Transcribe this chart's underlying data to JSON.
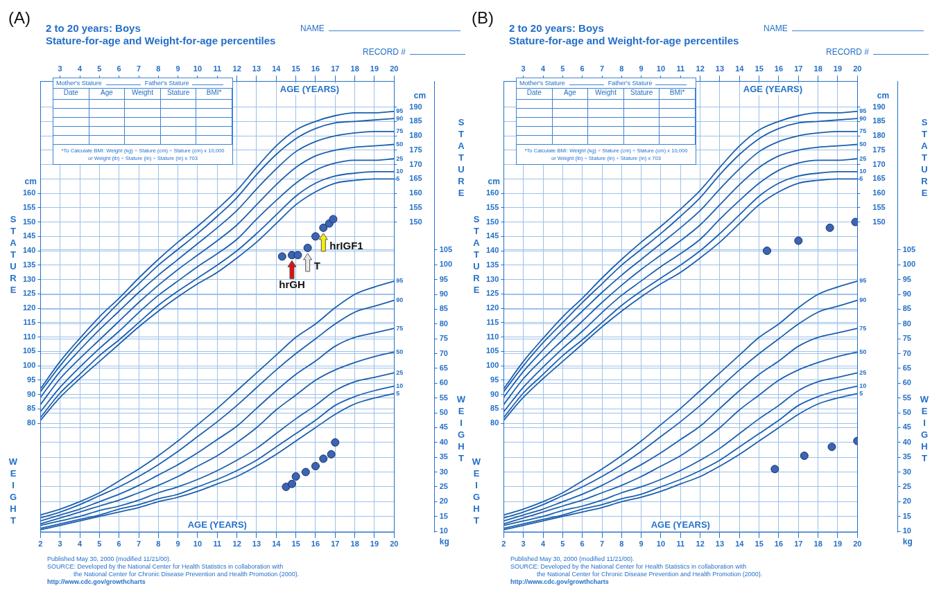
{
  "chart_data": [
    {
      "type": "line",
      "title": "2 to 20 years: Boys",
      "subtitle": "Stature-for-age and Weight-for-age percentiles",
      "xlabel": "AGE (YEARS)",
      "x2label": "AGE (YEARS)",
      "ylabel": "cm",
      "y2label": "kg",
      "y3label": "cm",
      "x": [
        2,
        3,
        4,
        5,
        6,
        7,
        8,
        9,
        10,
        11,
        12,
        13,
        14,
        15,
        16,
        17,
        18,
        19,
        20
      ],
      "xlim": [
        2,
        20
      ],
      "xticks": [
        2,
        3,
        4,
        5,
        6,
        7,
        8,
        9,
        10,
        11,
        12,
        13,
        14,
        15,
        16,
        17,
        18,
        19,
        20
      ],
      "x2lim": [
        2,
        20
      ],
      "x2ticks": [
        3,
        4,
        5,
        6,
        7,
        8,
        9,
        10,
        11,
        12,
        13,
        14,
        15,
        16,
        17,
        18,
        19,
        20
      ],
      "ylim": [
        42,
        199
      ],
      "yticks": [
        80,
        85,
        90,
        95,
        100,
        105,
        110,
        115,
        120,
        125,
        130,
        135,
        140,
        145,
        150,
        155,
        160
      ],
      "y2lim": [
        9.6,
        162
      ],
      "y2ticks": [
        10,
        15,
        20,
        25,
        30,
        35,
        40,
        45,
        50,
        55,
        60,
        65,
        70,
        75,
        80,
        85,
        90,
        95,
        100,
        105
      ],
      "y3lim": [
        42,
        199
      ],
      "y3ticks": [
        150,
        155,
        160,
        165,
        170,
        175,
        180,
        185,
        190
      ],
      "grid": true,
      "series": [
        {
          "name": "95",
          "color": "#1b5fae",
          "axis": "y",
          "values": [
            92,
            101.5,
            109.5,
            117,
            123.5,
            130.5,
            137,
            143,
            148.5,
            154.5,
            161,
            169,
            176.5,
            182,
            185,
            187,
            188,
            188,
            188.5
          ]
        },
        {
          "name": "90",
          "color": "#1b5fae",
          "axis": "y",
          "values": [
            91,
            100,
            108,
            115,
            122,
            128.5,
            135,
            140.5,
            146,
            152,
            158.5,
            166.5,
            173.5,
            179,
            182.5,
            184.5,
            185,
            185.5,
            186
          ]
        },
        {
          "name": "75",
          "color": "#1b5fae",
          "axis": "y",
          "values": [
            89,
            98,
            105.5,
            112.5,
            119,
            125.5,
            131.5,
            137,
            142.5,
            148,
            154,
            161.5,
            168.5,
            174.5,
            178,
            180,
            181,
            181.5,
            181.5
          ]
        },
        {
          "name": "50",
          "color": "#1b5fae",
          "axis": "y",
          "values": [
            86.5,
            95.5,
            102.5,
            109,
            115.5,
            122,
            128,
            133.5,
            138.5,
            143.5,
            149,
            156,
            163,
            169,
            173,
            175,
            176,
            176.5,
            177
          ]
        },
        {
          "name": "25",
          "color": "#1b5fae",
          "axis": "y",
          "values": [
            84,
            92.5,
            99.5,
            106,
            112,
            118.5,
            124.5,
            129.5,
            134.5,
            139,
            144,
            151,
            157.5,
            163.5,
            168,
            170.5,
            171.5,
            171.5,
            172
          ]
        },
        {
          "name": "10",
          "color": "#1b5fae",
          "axis": "y",
          "values": [
            82,
            90.5,
            97,
            103.5,
            109,
            115,
            121,
            126,
            130.5,
            135,
            140,
            146,
            152.5,
            159,
            163.5,
            166,
            167,
            167.5,
            167.5
          ]
        },
        {
          "name": "5",
          "color": "#1b5fae",
          "axis": "y",
          "values": [
            81,
            89,
            95.5,
            101.5,
            107.5,
            113.5,
            119,
            124,
            128.5,
            132.5,
            137.5,
            143,
            149.5,
            156,
            160.5,
            163.5,
            164.5,
            165,
            165
          ]
        },
        {
          "name": "95",
          "color": "#1b5fae",
          "axis": "y2",
          "values": [
            15.5,
            17.5,
            20,
            23,
            27,
            31,
            35.5,
            40.5,
            46,
            51.5,
            57.5,
            63.5,
            69.5,
            75.5,
            80,
            85.5,
            90,
            92.5,
            94.5
          ]
        },
        {
          "name": "90",
          "color": "#1b5fae",
          "axis": "y2",
          "values": [
            14.5,
            16.5,
            19,
            22,
            25,
            28.5,
            32.5,
            37,
            42,
            47,
            52.5,
            58.5,
            64.5,
            70,
            75,
            80,
            84,
            86,
            88
          ]
        },
        {
          "name": "75",
          "color": "#1b5fae",
          "axis": "y2",
          "values": [
            13.5,
            15.5,
            17.5,
            20,
            22.5,
            25.5,
            29,
            32.5,
            36.5,
            41,
            45.5,
            51.5,
            57.5,
            63,
            67.5,
            72.5,
            75.5,
            77,
            78.5
          ]
        },
        {
          "name": "50",
          "color": "#1b5fae",
          "axis": "y2",
          "values": [
            12.5,
            14.5,
            16.5,
            18.5,
            20.5,
            23,
            25.5,
            28.5,
            32,
            35.5,
            40,
            45,
            51,
            56,
            61,
            64.5,
            67,
            69,
            70.5
          ]
        },
        {
          "name": "25",
          "color": "#1b5fae",
          "axis": "y2",
          "values": [
            12,
            13.5,
            15,
            17,
            18.5,
            20.5,
            23,
            25,
            27.5,
            30.5,
            34,
            38,
            43,
            48,
            52.5,
            57.5,
            60.5,
            62,
            63.5
          ]
        },
        {
          "name": "10",
          "color": "#1b5fae",
          "axis": "y2",
          "values": [
            11,
            12.5,
            14,
            15.5,
            17.5,
            19,
            21,
            22.5,
            25,
            27.5,
            30.5,
            34,
            38.5,
            43,
            47.5,
            52.5,
            55.5,
            57.5,
            59
          ]
        },
        {
          "name": "5",
          "color": "#1b5fae",
          "axis": "y2",
          "values": [
            10.5,
            12,
            13.5,
            15,
            16.5,
            18,
            20,
            21.5,
            23.5,
            26,
            28.5,
            32,
            36,
            40.5,
            45,
            49.5,
            53,
            55,
            56.5
          ]
        },
        {
          "type": "scatter",
          "marker": "circle",
          "color": "#3a64b5",
          "axis": "y",
          "x": [
            14.3,
            14.8,
            15.1,
            15.6,
            16,
            16.4,
            16.7,
            16.9
          ],
          "values": [
            138,
            138.5,
            138.5,
            141,
            145,
            148,
            149.5,
            151
          ]
        },
        {
          "type": "scatter",
          "marker": "circle",
          "color": "#3a64b5",
          "axis": "y2",
          "x": [
            14.5,
            14.8,
            15,
            15.5,
            16,
            16.4,
            16.8,
            17
          ],
          "values": [
            25,
            26,
            28.5,
            30,
            32,
            34.5,
            36,
            40
          ]
        }
      ],
      "annotations": [
        "(A)",
        "NAME",
        "RECORD #",
        "Mother's Stature",
        "Father's Stature",
        "Date",
        "Age",
        "Weight",
        "Stature",
        "BMI*",
        "*To Calculate BMI: Weight (kg) ÷ Stature (cm) ÷ Stature (cm) x 10,000",
        "or Weight (lb) ÷ Stature (in) ÷ Stature (in) x 703",
        "STATURE",
        "STATURE",
        "WEIGHT",
        "WEIGHT",
        "Published May 30, 2000 (modified 11/21/00).",
        "SOURCE: Developed by the National Center for Health Statistics in collaboration with",
        "the National Center for Chronic Disease Prevention and Health Promotion (2000).",
        "http://www.cdc.gov/growthcharts",
        {
          "text": "hrGH",
          "x": 14.8,
          "y": 138.5
        },
        {
          "text": "T",
          "x": 15.6,
          "y": 141
        },
        {
          "text": "hrIGF1",
          "x": 16.4,
          "y": 148
        }
      ]
    },
    {
      "type": "line",
      "title": "2 to 20 years: Boys",
      "subtitle": "Stature-for-age and Weight-for-age percentiles",
      "xlabel": "AGE (YEARS)",
      "x2label": "AGE (YEARS)",
      "ylabel": "cm",
      "y2label": "kg",
      "y3label": "cm",
      "x": [
        2,
        3,
        4,
        5,
        6,
        7,
        8,
        9,
        10,
        11,
        12,
        13,
        14,
        15,
        16,
        17,
        18,
        19,
        20
      ],
      "xlim": [
        2,
        20
      ],
      "xticks": [
        2,
        3,
        4,
        5,
        6,
        7,
        8,
        9,
        10,
        11,
        12,
        13,
        14,
        15,
        16,
        17,
        18,
        19,
        20
      ],
      "x2lim": [
        2,
        20
      ],
      "x2ticks": [
        3,
        4,
        5,
        6,
        7,
        8,
        9,
        10,
        11,
        12,
        13,
        14,
        15,
        16,
        17,
        18,
        19,
        20
      ],
      "ylim": [
        42,
        199
      ],
      "yticks": [
        80,
        85,
        90,
        95,
        100,
        105,
        110,
        115,
        120,
        125,
        130,
        135,
        140,
        145,
        150,
        155,
        160
      ],
      "y2lim": [
        9.6,
        162
      ],
      "y2ticks": [
        10,
        15,
        20,
        25,
        30,
        35,
        40,
        45,
        50,
        55,
        60,
        65,
        70,
        75,
        80,
        85,
        90,
        95,
        100,
        105
      ],
      "y3lim": [
        42,
        199
      ],
      "y3ticks": [
        150,
        155,
        160,
        165,
        170,
        175,
        180,
        185,
        190
      ],
      "grid": true,
      "series": [
        {
          "name": "95",
          "color": "#1b5fae",
          "axis": "y",
          "values": [
            92,
            101.5,
            109.5,
            117,
            123.5,
            130.5,
            137,
            143,
            148.5,
            154.5,
            161,
            169,
            176.5,
            182,
            185,
            187,
            188,
            188,
            188.5
          ]
        },
        {
          "name": "90",
          "color": "#1b5fae",
          "axis": "y",
          "values": [
            91,
            100,
            108,
            115,
            122,
            128.5,
            135,
            140.5,
            146,
            152,
            158.5,
            166.5,
            173.5,
            179,
            182.5,
            184.5,
            185,
            185.5,
            186
          ]
        },
        {
          "name": "75",
          "color": "#1b5fae",
          "axis": "y",
          "values": [
            89,
            98,
            105.5,
            112.5,
            119,
            125.5,
            131.5,
            137,
            142.5,
            148,
            154,
            161.5,
            168.5,
            174.5,
            178,
            180,
            181,
            181.5,
            181.5
          ]
        },
        {
          "name": "50",
          "color": "#1b5fae",
          "axis": "y",
          "values": [
            86.5,
            95.5,
            102.5,
            109,
            115.5,
            122,
            128,
            133.5,
            138.5,
            143.5,
            149,
            156,
            163,
            169,
            173,
            175,
            176,
            176.5,
            177
          ]
        },
        {
          "name": "25",
          "color": "#1b5fae",
          "axis": "y",
          "values": [
            84,
            92.5,
            99.5,
            106,
            112,
            118.5,
            124.5,
            129.5,
            134.5,
            139,
            144,
            151,
            157.5,
            163.5,
            168,
            170.5,
            171.5,
            171.5,
            172
          ]
        },
        {
          "name": "10",
          "color": "#1b5fae",
          "axis": "y",
          "values": [
            82,
            90.5,
            97,
            103.5,
            109,
            115,
            121,
            126,
            130.5,
            135,
            140,
            146,
            152.5,
            159,
            163.5,
            166,
            167,
            167.5,
            167.5
          ]
        },
        {
          "name": "5",
          "color": "#1b5fae",
          "axis": "y",
          "values": [
            81,
            89,
            95.5,
            101.5,
            107.5,
            113.5,
            119,
            124,
            128.5,
            132.5,
            137.5,
            143,
            149.5,
            156,
            160.5,
            163.5,
            164.5,
            165,
            165
          ]
        },
        {
          "name": "95",
          "color": "#1b5fae",
          "axis": "y2",
          "values": [
            15.5,
            17.5,
            20,
            23,
            27,
            31,
            35.5,
            40.5,
            46,
            51.5,
            57.5,
            63.5,
            69.5,
            75.5,
            80,
            85.5,
            90,
            92.5,
            94.5
          ]
        },
        {
          "name": "90",
          "color": "#1b5fae",
          "axis": "y2",
          "values": [
            14.5,
            16.5,
            19,
            22,
            25,
            28.5,
            32.5,
            37,
            42,
            47,
            52.5,
            58.5,
            64.5,
            70,
            75,
            80,
            84,
            86,
            88
          ]
        },
        {
          "name": "75",
          "color": "#1b5fae",
          "axis": "y2",
          "values": [
            13.5,
            15.5,
            17.5,
            20,
            22.5,
            25.5,
            29,
            32.5,
            36.5,
            41,
            45.5,
            51.5,
            57.5,
            63,
            67.5,
            72.5,
            75.5,
            77,
            78.5
          ]
        },
        {
          "name": "50",
          "color": "#1b5fae",
          "axis": "y2",
          "values": [
            12.5,
            14.5,
            16.5,
            18.5,
            20.5,
            23,
            25.5,
            28.5,
            32,
            35.5,
            40,
            45,
            51,
            56,
            61,
            64.5,
            67,
            69,
            70.5
          ]
        },
        {
          "name": "25",
          "color": "#1b5fae",
          "axis": "y2",
          "values": [
            12,
            13.5,
            15,
            17,
            18.5,
            20.5,
            23,
            25,
            27.5,
            30.5,
            34,
            38,
            43,
            48,
            52.5,
            57.5,
            60.5,
            62,
            63.5
          ]
        },
        {
          "name": "10",
          "color": "#1b5fae",
          "axis": "y2",
          "values": [
            11,
            12.5,
            14,
            15.5,
            17.5,
            19,
            21,
            22.5,
            25,
            27.5,
            30.5,
            34,
            38.5,
            43,
            47.5,
            52.5,
            55.5,
            57.5,
            59
          ]
        },
        {
          "name": "5",
          "color": "#1b5fae",
          "axis": "y2",
          "values": [
            10.5,
            12,
            13.5,
            15,
            16.5,
            18,
            20,
            21.5,
            23.5,
            26,
            28.5,
            32,
            36,
            40.5,
            45,
            49.5,
            53,
            55,
            56.5
          ]
        },
        {
          "type": "scatter",
          "marker": "circle",
          "color": "#3a64b5",
          "axis": "y",
          "x": [
            15.4,
            17,
            18.6,
            19.9
          ],
          "values": [
            140,
            143.5,
            148,
            150
          ]
        },
        {
          "type": "scatter",
          "marker": "circle",
          "color": "#3a64b5",
          "axis": "y2",
          "x": [
            15.8,
            17.3,
            18.7,
            20
          ],
          "values": [
            31,
            35.5,
            38.5,
            40.5
          ]
        }
      ],
      "annotations": [
        "(B)",
        "NAME",
        "RECORD #",
        "Mother's Stature",
        "Father's Stature",
        "Date",
        "Age",
        "Weight",
        "Stature",
        "BMI*",
        "*To Calculate BMI: Weight (kg) ÷ Stature (cm) ÷ Stature (cm) x 10,000",
        "or Weight (lb) ÷ Stature (in) ÷ Stature (in) x 703",
        "STATURE",
        "STATURE",
        "WEIGHT",
        "WEIGHT",
        "Published May 30, 2000 (modified 11/21/00).",
        "SOURCE: Developed by the National Center for Health Statistics in collaboration with",
        "the National Center for Chronic Disease Prevention and Health Promotion (2000).",
        "http://www.cdc.gov/growthcharts"
      ]
    }
  ]
}
